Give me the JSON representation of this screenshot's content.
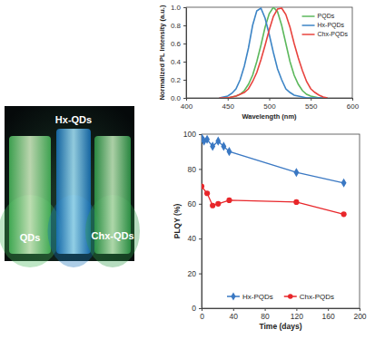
{
  "image": {
    "labels": [
      "QDs",
      "Hx-QDs",
      "Chx-QDs"
    ]
  },
  "chart_data": [
    {
      "type": "line",
      "xlabel": "Wavelength (nm)",
      "ylabel": "Normalized PL Intensity (a.u.)",
      "xlim": [
        400,
        600
      ],
      "xticks": [
        400,
        450,
        500,
        550,
        600
      ],
      "ylim": [
        0,
        1
      ],
      "yticks": [
        {
          "value": 0,
          "label": "0.0"
        },
        {
          "value": 0.2,
          "label": "0.2"
        },
        {
          "value": 0.4,
          "label": "0.4"
        },
        {
          "value": 0.6,
          "label": "0.6"
        },
        {
          "value": 0.8,
          "label": "0.8"
        },
        {
          "value": 1,
          "label": "1.0"
        }
      ],
      "grid": false,
      "legend": "upper right",
      "x": [
        440,
        445,
        450,
        455,
        460,
        465,
        470,
        475,
        480,
        485,
        490,
        495,
        500,
        505,
        510,
        515,
        520,
        525,
        530,
        535,
        540,
        545,
        550,
        555,
        560,
        565,
        570
      ],
      "series": [
        {
          "name": "PQDs",
          "color": "#5cb85c",
          "line_style": "solid",
          "values": [
            0,
            0,
            0,
            0.01,
            0.02,
            0.04,
            0.08,
            0.15,
            0.25,
            0.4,
            0.58,
            0.78,
            0.93,
            1.0,
            0.95,
            0.8,
            0.6,
            0.4,
            0.25,
            0.15,
            0.08,
            0.04,
            0.02,
            0.01,
            0,
            0,
            0
          ]
        },
        {
          "name": "Hx-PQDs",
          "color": "#3d85c6",
          "line_style": "solid",
          "values": [
            0,
            0.01,
            0.02,
            0.05,
            0.1,
            0.2,
            0.35,
            0.55,
            0.8,
            0.96,
            0.99,
            0.88,
            0.7,
            0.5,
            0.32,
            0.2,
            0.1,
            0.06,
            0.03,
            0.02,
            0.01,
            0,
            0,
            0,
            0,
            0,
            0
          ]
        },
        {
          "name": "Chx-PQDs",
          "color": "#e8433e",
          "line_style": "solid",
          "values": [
            0,
            0,
            0,
            0.01,
            0.02,
            0.04,
            0.06,
            0.1,
            0.18,
            0.28,
            0.42,
            0.58,
            0.75,
            0.9,
            0.98,
            0.99,
            0.92,
            0.78,
            0.6,
            0.44,
            0.3,
            0.18,
            0.1,
            0.06,
            0.03,
            0.01,
            0
          ]
        }
      ]
    },
    {
      "type": "line",
      "xlabel": "Time (days)",
      "ylabel": "PLQY (%)",
      "xlim": [
        0,
        200
      ],
      "xticks": [
        0,
        40,
        80,
        120,
        160,
        200
      ],
      "ylim": [
        0,
        100
      ],
      "yticks": [
        0,
        20,
        40,
        60,
        80,
        100
      ],
      "grid": false,
      "legend": "lower center",
      "series": [
        {
          "name": "Hx-PQDs",
          "color": "#3a78c3",
          "marker": "diamond",
          "line_style": "solid",
          "x": [
            0,
            3,
            7,
            14,
            21,
            28,
            35,
            120,
            180
          ],
          "values": [
            98,
            96,
            97,
            93,
            96,
            93,
            90,
            78,
            72
          ]
        },
        {
          "name": "Chx-PQDs",
          "color": "#e8262a",
          "marker": "circle",
          "line_style": "solid",
          "x": [
            0,
            7,
            14,
            21,
            35,
            120,
            180
          ],
          "values": [
            70,
            66,
            59,
            60,
            62,
            61,
            54
          ]
        }
      ]
    }
  ]
}
